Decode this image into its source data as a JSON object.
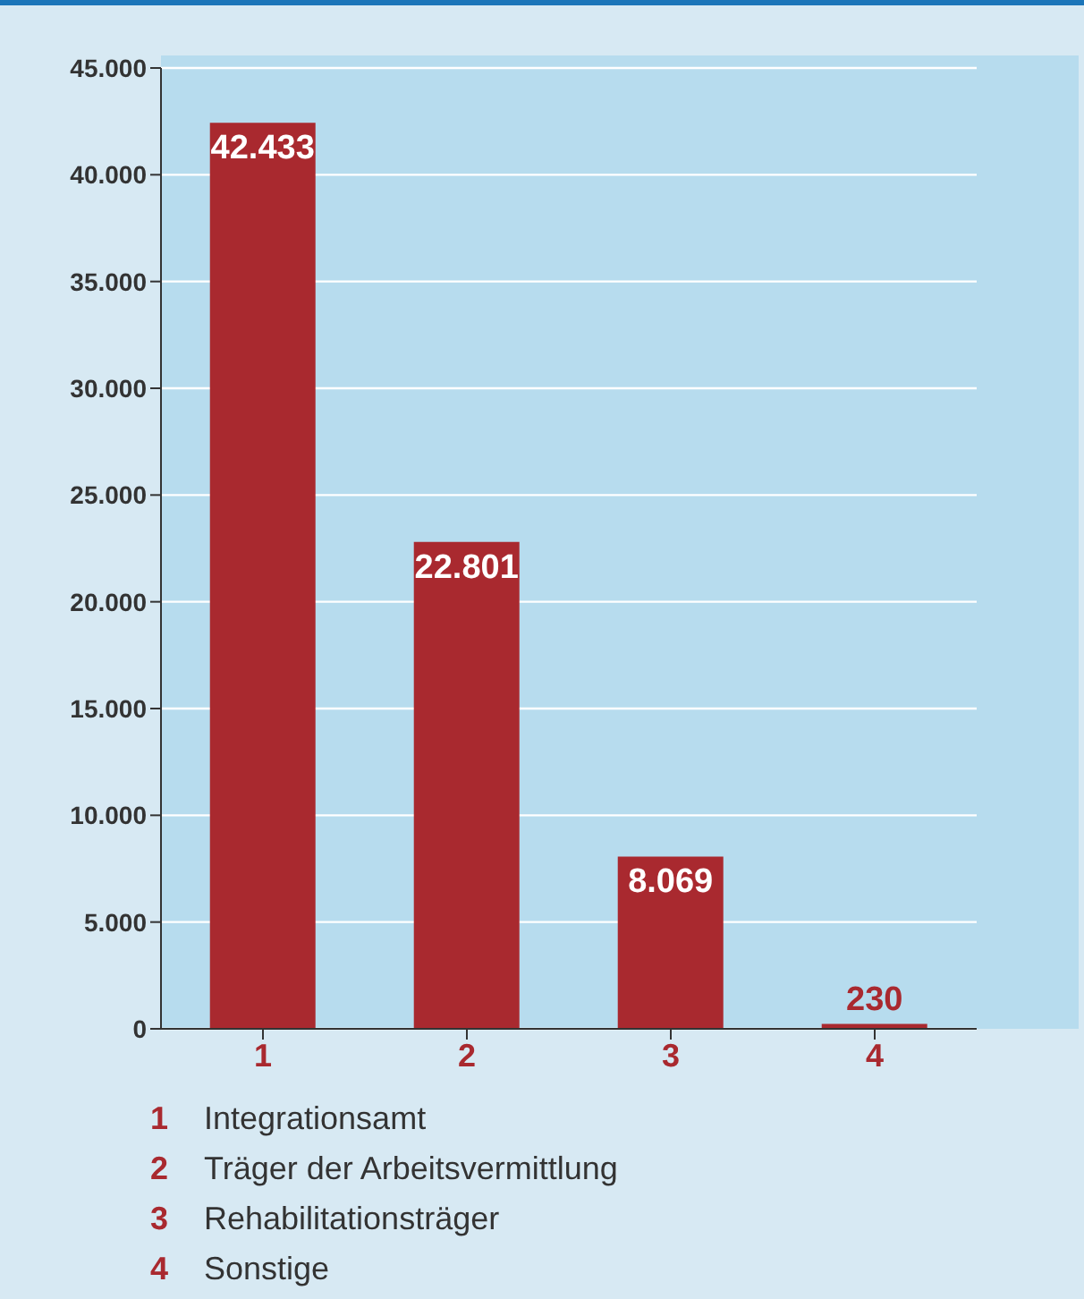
{
  "chart_data": {
    "type": "bar",
    "categories": [
      "1",
      "2",
      "3",
      "4"
    ],
    "values": [
      42433,
      22801,
      8069,
      230
    ],
    "color": "#a9292f",
    "value_labels": [
      "42.433",
      "22.801",
      "8.069",
      "230"
    ],
    "ylim": [
      0,
      45000
    ],
    "yticks": [
      {
        "value": 0,
        "label": "0"
      },
      {
        "value": 5000,
        "label": "5.000"
      },
      {
        "value": 10000,
        "label": "10.000"
      },
      {
        "value": 15000,
        "label": "15.000"
      },
      {
        "value": 20000,
        "label": "20.000"
      },
      {
        "value": 25000,
        "label": "25.000"
      },
      {
        "value": 30000,
        "label": "30.000"
      },
      {
        "value": 35000,
        "label": "35.000"
      },
      {
        "value": 40000,
        "label": "40.000"
      },
      {
        "value": 45000,
        "label": "45.000"
      }
    ],
    "grid": "y",
    "annotations": [
      "1 Integrationsamt",
      "2 Träger der Arbeitsvermittlung",
      "3 Rehabilitationsträger",
      "4 Sonstige"
    ]
  }
}
